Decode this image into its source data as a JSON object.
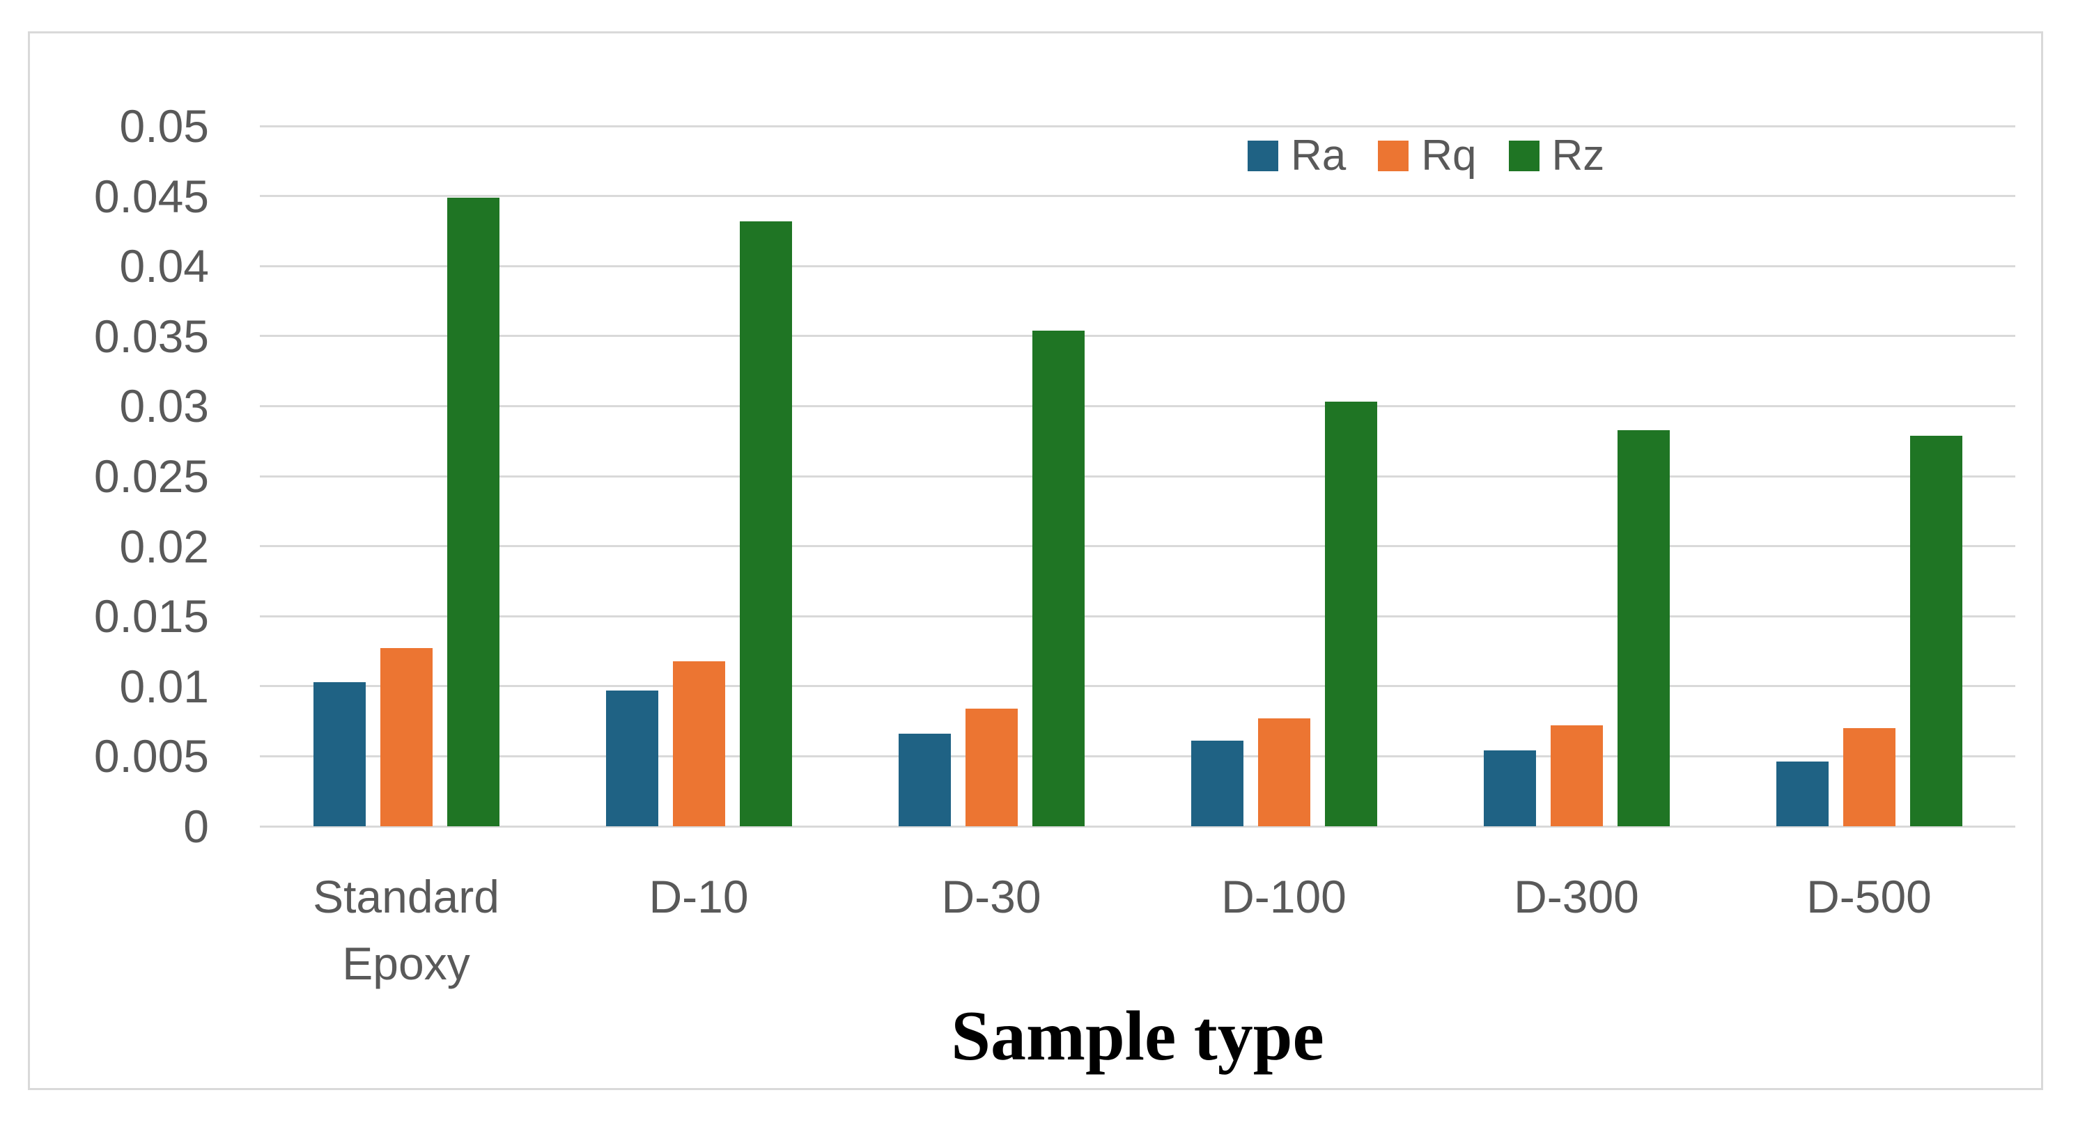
{
  "chart_data": {
    "type": "bar",
    "title": "",
    "xlabel": "Sample type",
    "ylabel": "",
    "categories": [
      "Standard Epoxy",
      "D-10",
      "D-30",
      "D-100",
      "D-300",
      "D-500"
    ],
    "series": [
      {
        "name": "Ra",
        "color": "#1f6284",
        "values": [
          0.0103,
          0.0097,
          0.0066,
          0.0061,
          0.0054,
          0.0046
        ]
      },
      {
        "name": "Rq",
        "color": "#ec7532",
        "values": [
          0.0127,
          0.0118,
          0.0084,
          0.0077,
          0.0072,
          0.007
        ]
      },
      {
        "name": "Rz",
        "color": "#1f7524",
        "values": [
          0.0449,
          0.0432,
          0.0354,
          0.0303,
          0.0283,
          0.0279
        ]
      }
    ],
    "ylim": [
      0,
      0.05
    ],
    "ytick_step": 0.005,
    "ytick_labels": [
      "0",
      "0.005",
      "0.01",
      "0.015",
      "0.02",
      "0.025",
      "0.03",
      "0.035",
      "0.04",
      "0.045",
      "0.05"
    ],
    "grid": "horizontal",
    "legend_position": "top",
    "legend_items": [
      "Ra",
      "Rq",
      "Rz"
    ],
    "colors": {
      "gridline": "#d9d9d9",
      "frame_border": "#d9d9d9",
      "tick_label": "#595959",
      "category_label": "#595959",
      "legend_label": "#595959",
      "title_color": "#000000",
      "background": "#ffffff"
    }
  }
}
